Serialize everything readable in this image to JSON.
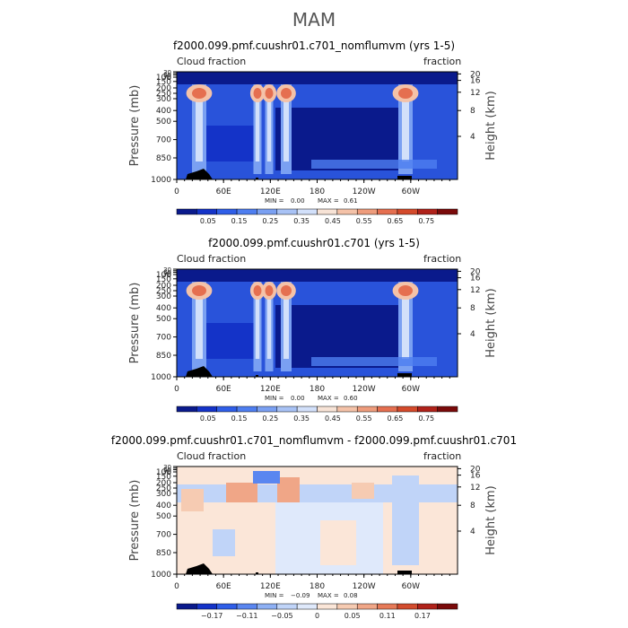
{
  "figure_title": "MAM",
  "chart_data": [
    {
      "type": "heatmap",
      "title": "f2000.099.pmf.cuushr01.c701_nomflumvm (yrs 1-5)",
      "left_label": "Cloud fraction",
      "right_label": "fraction",
      "ylabel": "Pressure (mb)",
      "ylabel_right": "Height (km)",
      "pressure_ticks": [
        "30",
        "50",
        "70",
        "100",
        "150",
        "200",
        "250",
        "300",
        "400",
        "500",
        "700",
        "850",
        "1000"
      ],
      "height_ticks": [
        "4",
        "8",
        "12",
        "16",
        "20"
      ],
      "lon_ticks": [
        "0",
        "60E",
        "120E",
        "180",
        "120W",
        "60W"
      ],
      "stats": {
        "min_label": "MIN =",
        "min": "0.00",
        "max_label": "MAX =",
        "max": "0.61"
      },
      "colorbar": {
        "labels": [
          "0.05",
          "0.15",
          "0.25",
          "0.35",
          "0.45",
          "0.55",
          "0.65",
          "0.75"
        ],
        "colors": [
          "#0a1a8c",
          "#1433c8",
          "#2f5ee8",
          "#4e7ef0",
          "#7aa0f2",
          "#a8c2f5",
          "#d2e0fa",
          "#f7e3d6",
          "#f4c2a8",
          "#ee9c7c",
          "#e56f50",
          "#d44a2b",
          "#b0221a",
          "#7a0a0a"
        ]
      }
    },
    {
      "type": "heatmap",
      "title": "f2000.099.pmf.cuushr01.c701 (yrs 1-5)",
      "left_label": "Cloud fraction",
      "right_label": "fraction",
      "ylabel": "Pressure (mb)",
      "ylabel_right": "Height (km)",
      "pressure_ticks": [
        "30",
        "50",
        "70",
        "100",
        "150",
        "200",
        "250",
        "300",
        "400",
        "500",
        "700",
        "850",
        "1000"
      ],
      "height_ticks": [
        "4",
        "8",
        "12",
        "16",
        "20"
      ],
      "lon_ticks": [
        "0",
        "60E",
        "120E",
        "180",
        "120W",
        "60W"
      ],
      "stats": {
        "min_label": "MIN =",
        "min": "0.00",
        "max_label": "MAX =",
        "max": "0.60"
      },
      "colorbar": {
        "labels": [
          "0.05",
          "0.15",
          "0.25",
          "0.35",
          "0.45",
          "0.55",
          "0.65",
          "0.75"
        ],
        "colors": [
          "#0a1a8c",
          "#1433c8",
          "#2f5ee8",
          "#4e7ef0",
          "#7aa0f2",
          "#a8c2f5",
          "#d2e0fa",
          "#f7e3d6",
          "#f4c2a8",
          "#ee9c7c",
          "#e56f50",
          "#d44a2b",
          "#b0221a",
          "#7a0a0a"
        ]
      }
    },
    {
      "type": "heatmap",
      "title": "f2000.099.pmf.cuushr01.c701_nomflumvm - f2000.099.pmf.cuushr01.c701",
      "left_label": "Cloud fraction",
      "right_label": "fraction",
      "ylabel": "Pressure (mb)",
      "ylabel_right": "Height (km)",
      "pressure_ticks": [
        "30",
        "50",
        "70",
        "100",
        "150",
        "200",
        "250",
        "300",
        "400",
        "500",
        "700",
        "850",
        "1000"
      ],
      "height_ticks": [
        "4",
        "8",
        "12",
        "16",
        "20"
      ],
      "lon_ticks": [
        "0",
        "60E",
        "120E",
        "180",
        "120W",
        "60W"
      ],
      "stats": {
        "min_label": "MIN =",
        "min": "−0.09",
        "max_label": "MAX =",
        "max": "0.08"
      },
      "colorbar": {
        "labels": [
          "−0.17",
          "−0.11",
          "−0.05",
          "0",
          "0.05",
          "0.11",
          "0.17"
        ],
        "colors": [
          "#0a1a8c",
          "#1433c8",
          "#2f5ee8",
          "#5a86f0",
          "#8eb0f4",
          "#c0d4f8",
          "#dfe9fb",
          "#fbe6d8",
          "#f6cbb2",
          "#f0a687",
          "#e67a58",
          "#d24c2e",
          "#b0221a",
          "#7a0a0a"
        ]
      }
    }
  ]
}
